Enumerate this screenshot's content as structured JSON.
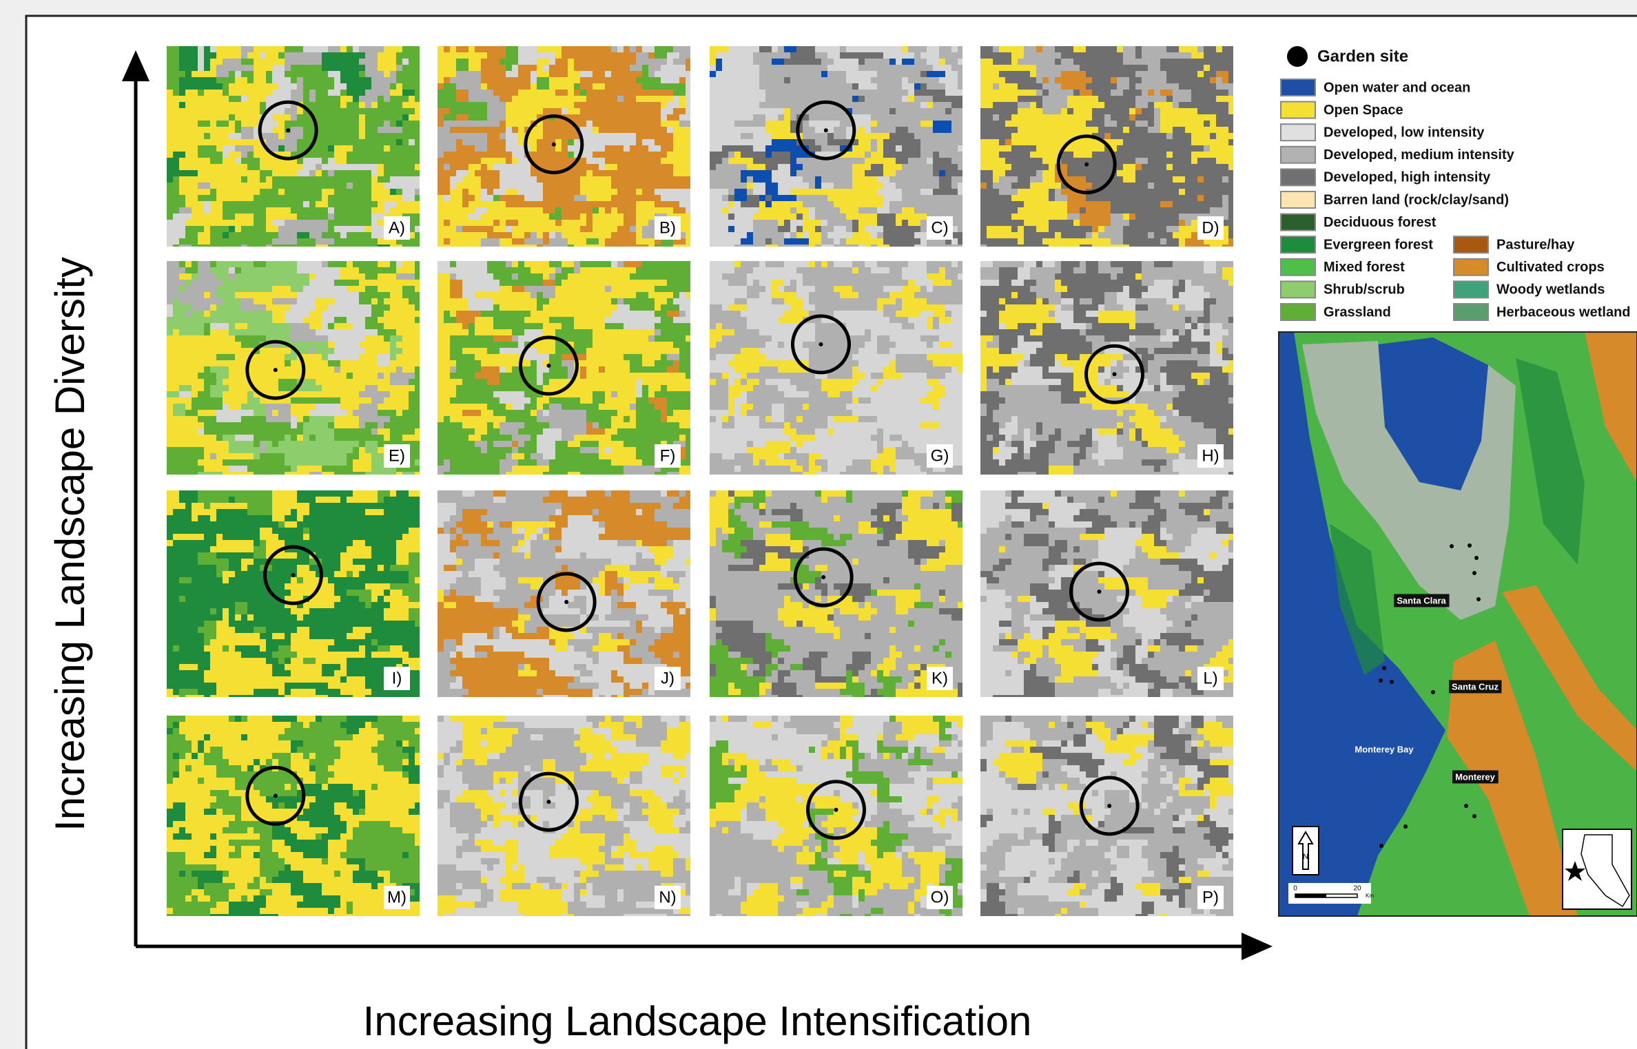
{
  "y_axis_label": "Increasing Landscape Diversity",
  "x_axis_label": "Increasing Landscape Intensification",
  "panels": [
    "A)",
    "B)",
    "C)",
    "D)",
    "E)",
    "F)",
    "G)",
    "H)",
    "I)",
    "J)",
    "K)",
    "L)",
    "M)",
    "N)",
    "O)",
    "P)"
  ],
  "legend": {
    "garden_site": "Garden site",
    "items": [
      {
        "label": "Open water and ocean",
        "color": "#1d4fa6"
      },
      {
        "label": "Open Space",
        "color": "#f6df33"
      },
      {
        "label": "Developed, low intensity",
        "color": "#e0e0e0"
      },
      {
        "label": "Developed, medium intensity",
        "color": "#b2b2b2"
      },
      {
        "label": "Developed, high intensity",
        "color": "#707070"
      },
      {
        "label": "Barren land (rock/clay/sand)",
        "color": "#fbe6b2"
      },
      {
        "label": "Deciduous forest",
        "color": "#2c5f2e"
      },
      {
        "label": "Evergreen forest",
        "color": "#1f8b3d"
      },
      {
        "label": "Mixed forest",
        "color": "#4fbf4a"
      },
      {
        "label": "Shrub/scrub",
        "color": "#8ecd6b"
      },
      {
        "label": "Grassland",
        "color": "#5fae35"
      },
      {
        "label": "Pasture/hay",
        "color": "#a9590f"
      },
      {
        "label": "Cultivated crops",
        "color": "#d68a2a"
      },
      {
        "label": "Woody wetlands",
        "color": "#3ea37a"
      },
      {
        "label": "Herbaceous wetland",
        "color": "#5b9e6e"
      }
    ]
  },
  "map": {
    "places": [
      "Santa Clara",
      "Santa Cruz",
      "Monterey Bay",
      "Monterey"
    ],
    "north": "N",
    "scale": [
      "0",
      "20"
    ],
    "scale_unit": "Km"
  }
}
